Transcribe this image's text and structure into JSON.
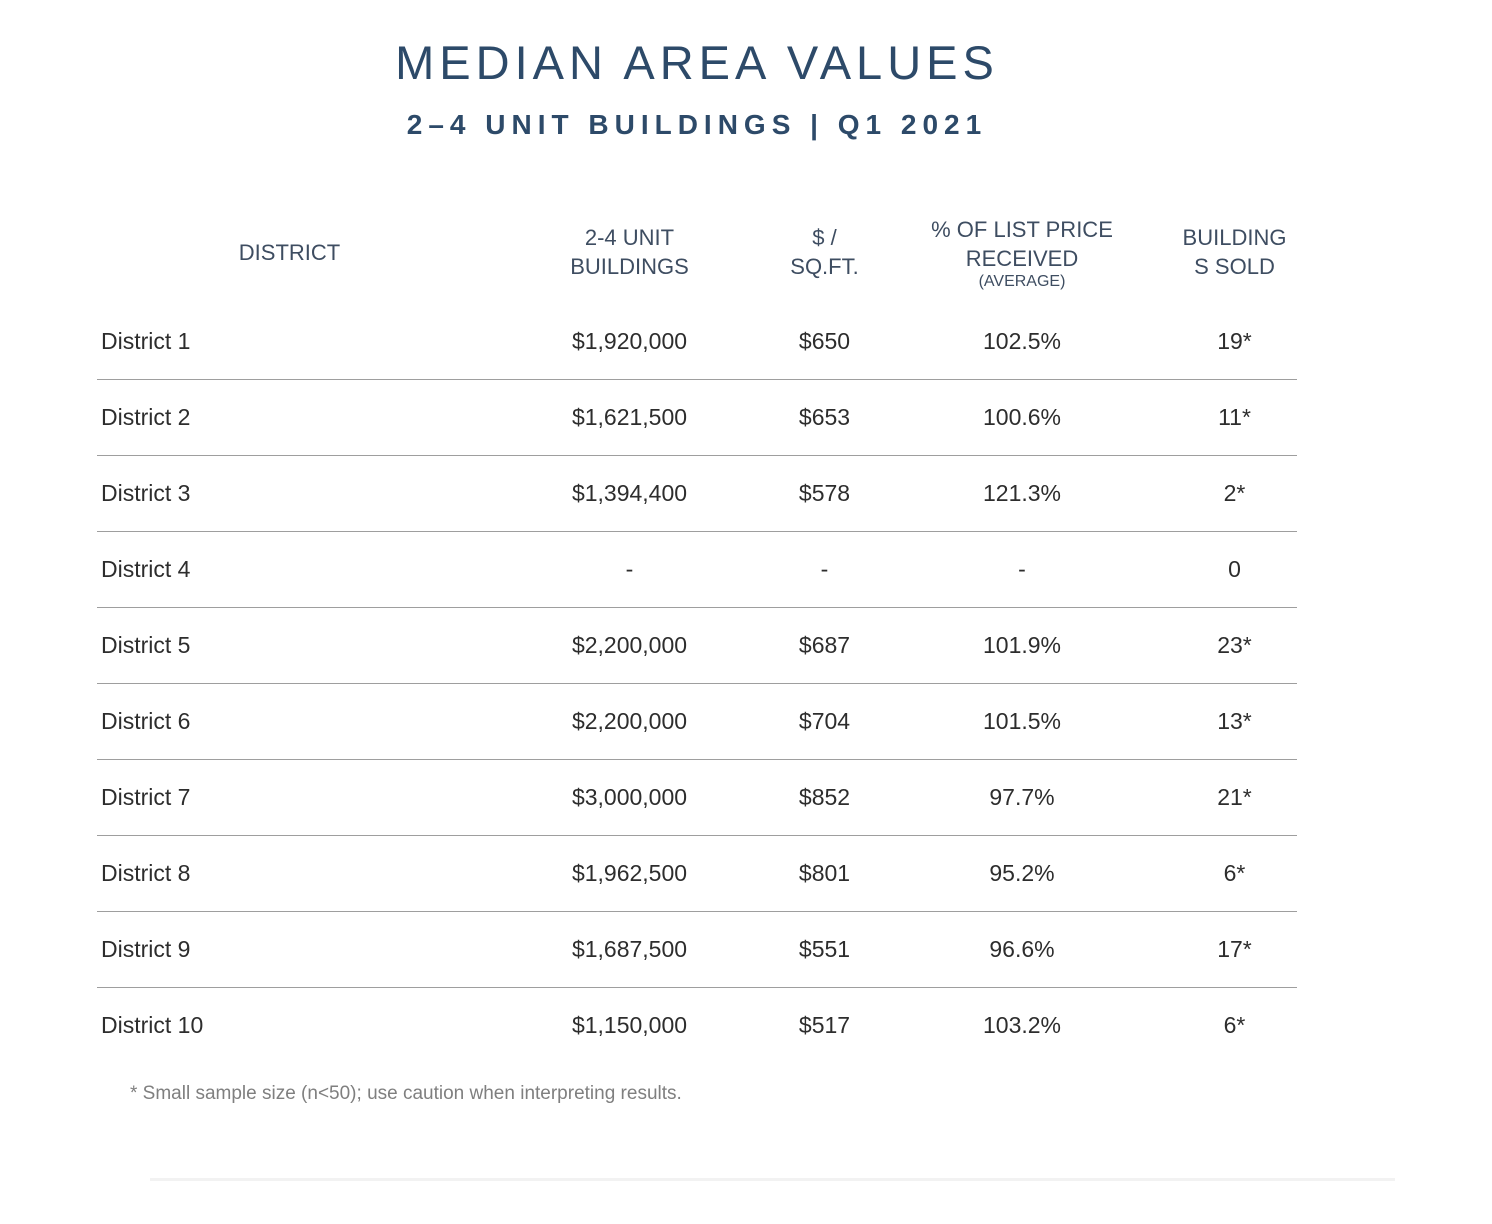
{
  "page": {
    "title": "MEDIAN AREA VALUES",
    "subtitle": "2–4 UNIT BUILDINGS | Q1 2021",
    "footnote": "* Small sample size (n<50); use caution when interpreting results."
  },
  "colors": {
    "title_navy": "#2d4a69",
    "header_text": "#3e4d61",
    "body_text": "#2d2d2d",
    "row_divider": "#9e9e9e",
    "footnote_gray": "#7f7f7f",
    "bottom_rule": "#f2f2f2"
  },
  "table": {
    "headers": {
      "district": "DISTRICT",
      "unit_buildings": "2-4 UNIT\nBUILDINGS",
      "price_per_sqft": "$ / SQ.FT.",
      "pct_list_price": "% OF LIST PRICE\nRECEIVED",
      "pct_list_price_sub": "(AVERAGE)",
      "buildings_sold": "BUILDING\nS SOLD"
    },
    "rows": [
      {
        "district": "District 1",
        "price": "$1,920,000",
        "sqft": "$650",
        "pct": "102.5%",
        "sold": "19*"
      },
      {
        "district": "District 2",
        "price": "$1,621,500",
        "sqft": "$653",
        "pct": "100.6%",
        "sold": "11*"
      },
      {
        "district": "District 3",
        "price": "$1,394,400",
        "sqft": "$578",
        "pct": "121.3%",
        "sold": "2*"
      },
      {
        "district": "District 4",
        "price": "-",
        "sqft": "-",
        "pct": "-",
        "sold": "0"
      },
      {
        "district": "District 5",
        "price": "$2,200,000",
        "sqft": "$687",
        "pct": "101.9%",
        "sold": "23*"
      },
      {
        "district": "District 6",
        "price": "$2,200,000",
        "sqft": "$704",
        "pct": "101.5%",
        "sold": "13*"
      },
      {
        "district": "District 7",
        "price": "$3,000,000",
        "sqft": "$852",
        "pct": "97.7%",
        "sold": "21*"
      },
      {
        "district": "District 8",
        "price": "$1,962,500",
        "sqft": "$801",
        "pct": "95.2%",
        "sold": "6*"
      },
      {
        "district": "District 9",
        "price": "$1,687,500",
        "sqft": "$551",
        "pct": "96.6%",
        "sold": "17*"
      },
      {
        "district": "District 10",
        "price": "$1,150,000",
        "sqft": "$517",
        "pct": "103.2%",
        "sold": "6*"
      }
    ]
  }
}
